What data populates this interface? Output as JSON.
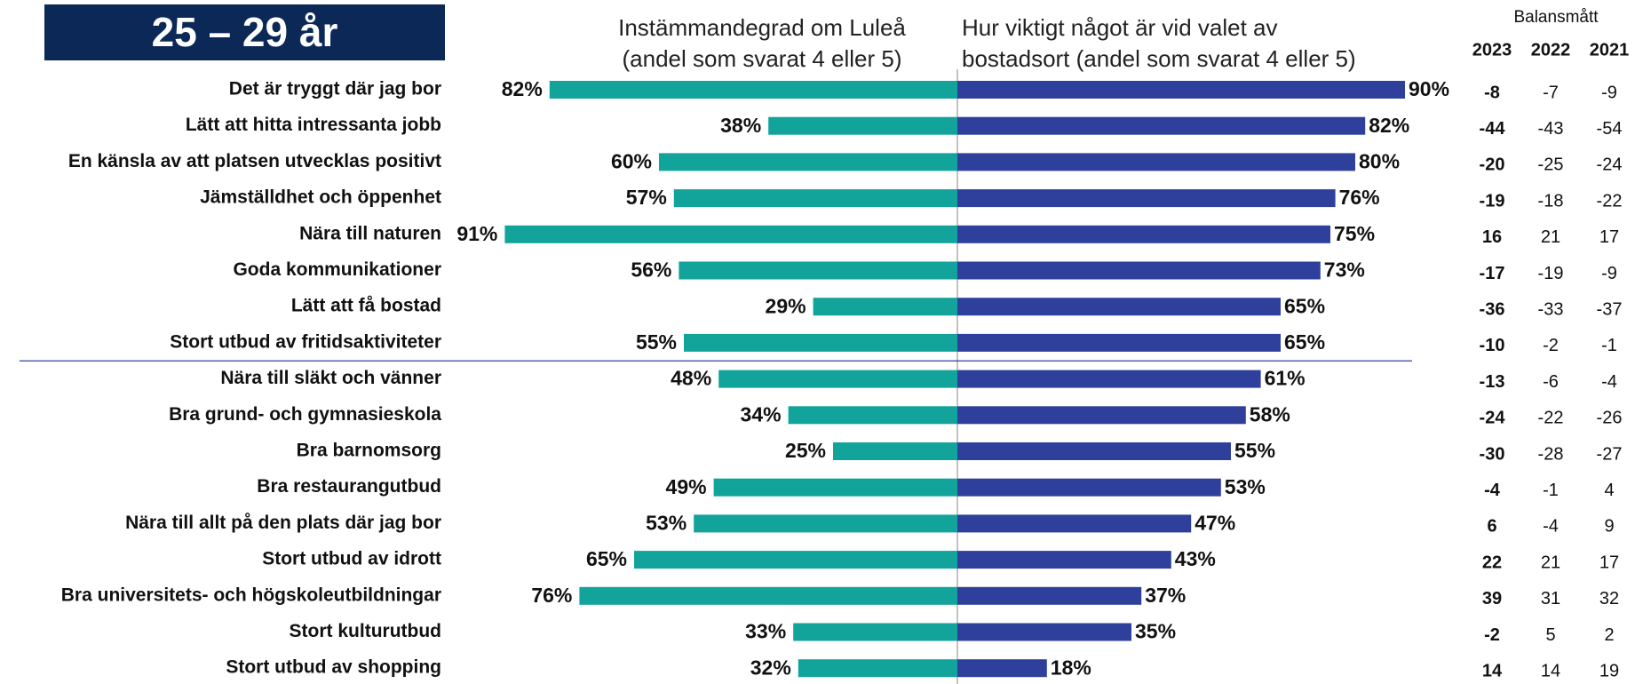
{
  "chart_data": {
    "type": "butterfly",
    "title": "25 – 29 år",
    "categories": [
      "Det är tryggt där jag bor",
      "Lätt att hitta intressanta jobb",
      "En känsla av att platsen utvecklas positivt",
      "Jämställdhet och öppenhet",
      "Nära till naturen",
      "Goda kommunikationer",
      "Lätt att få bostad",
      "Stort utbud av fritidsaktiviteter",
      "Nära till släkt och vänner",
      "Bra grund- och gymnasieskola",
      "Bra barnomsorg",
      "Bra restaurangutbud",
      "Nära till allt på den plats där jag bor",
      "Stort utbud av idrott",
      "Bra universitets- och högskoleutbildningar",
      "Stort kulturutbud",
      "Stort utbud av shopping"
    ],
    "series": [
      {
        "name": "Instämmandegrad om Luleå\n(andel som svarat 4 eller 5)",
        "color": "#12a39b",
        "values": [
          82,
          38,
          60,
          57,
          91,
          56,
          29,
          55,
          48,
          34,
          25,
          49,
          53,
          65,
          76,
          33,
          32
        ],
        "value_labels": [
          "82%",
          "38%",
          "60%",
          "57%",
          "91%",
          "56%",
          "29%",
          "55%",
          "48%",
          "34%",
          "25%",
          "49%",
          "53%",
          "65%",
          "76%",
          "33%",
          "32%"
        ]
      },
      {
        "name": "Hur viktigt något är vid valet av\nbostadsort (andel som svarat 4 eller 5)",
        "color": "#2f409c",
        "values": [
          90,
          82,
          80,
          76,
          75,
          73,
          65,
          65,
          61,
          58,
          55,
          53,
          47,
          43,
          37,
          35,
          18
        ],
        "value_labels": [
          "90%",
          "82%",
          "80%",
          "76%",
          "75%",
          "73%",
          "65%",
          "65%",
          "61%",
          "58%",
          "55%",
          "53%",
          "47%",
          "43%",
          "37%",
          "35%",
          "18%"
        ]
      }
    ],
    "table": {
      "title": "Balansmått",
      "columns": [
        "2023",
        "2022",
        "2021"
      ],
      "rows": [
        [
          -8,
          -7,
          -9
        ],
        [
          -44,
          -43,
          -54
        ],
        [
          -20,
          -25,
          -24
        ],
        [
          -19,
          -18,
          -22
        ],
        [
          16,
          21,
          17
        ],
        [
          -17,
          -19,
          -9
        ],
        [
          -36,
          -33,
          -37
        ],
        [
          -10,
          -2,
          -1
        ],
        [
          -13,
          -6,
          -4
        ],
        [
          -24,
          -22,
          -26
        ],
        [
          -30,
          -28,
          -27
        ],
        [
          -4,
          -1,
          4
        ],
        [
          6,
          -4,
          9
        ],
        [
          22,
          21,
          17
        ],
        [
          39,
          31,
          32
        ],
        [
          -2,
          5,
          2
        ],
        [
          14,
          14,
          19
        ]
      ]
    }
  }
}
